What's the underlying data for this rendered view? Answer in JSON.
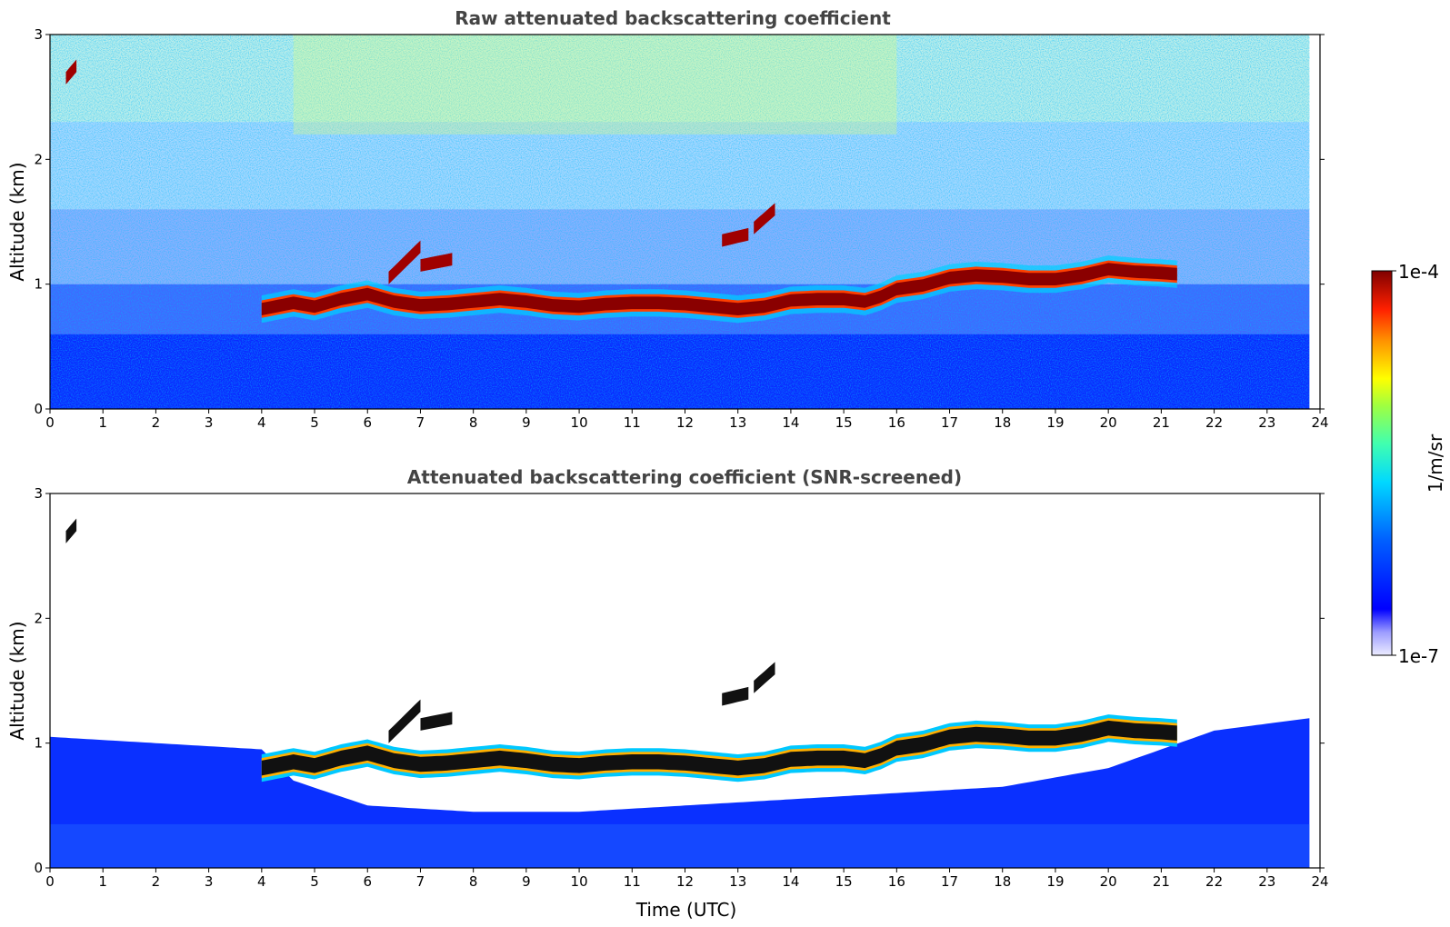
{
  "chart_data": [
    {
      "type": "heatmap",
      "title": "Raw attenuated backscattering coefficient",
      "xlabel": "",
      "ylabel": "Altitude (km)",
      "xlim": [
        0,
        24
      ],
      "ylim": [
        0,
        3
      ],
      "xticks": [
        0,
        1,
        2,
        3,
        4,
        5,
        6,
        7,
        8,
        9,
        10,
        11,
        12,
        13,
        14,
        15,
        16,
        17,
        18,
        19,
        20,
        21,
        22,
        23,
        24
      ],
      "yticks": [
        0,
        1,
        2,
        3
      ],
      "data_end_hour": 23.8,
      "background_noise": "high, increasing with altitude",
      "cloud_layer": {
        "time": [
          4.0,
          4.6,
          5.0,
          5.5,
          6.0,
          6.5,
          7.0,
          7.5,
          8.0,
          8.5,
          9.0,
          9.5,
          10.0,
          10.5,
          11.0,
          11.5,
          12.0,
          12.5,
          13.0,
          13.5,
          14.0,
          14.5,
          15.0,
          15.4,
          15.7,
          16.0,
          16.5,
          17.0,
          17.5,
          18.0,
          18.5,
          19.0,
          19.5,
          20.0,
          20.5,
          21.0,
          21.3
        ],
        "altitude_km": [
          0.8,
          0.85,
          0.82,
          0.88,
          0.92,
          0.86,
          0.83,
          0.84,
          0.86,
          0.88,
          0.86,
          0.83,
          0.82,
          0.84,
          0.85,
          0.85,
          0.84,
          0.82,
          0.8,
          0.82,
          0.87,
          0.88,
          0.88,
          0.86,
          0.9,
          0.96,
          0.99,
          1.05,
          1.07,
          1.06,
          1.04,
          1.04,
          1.07,
          1.12,
          1.1,
          1.09,
          1.08
        ]
      },
      "elevated_cloud_fragments": [
        {
          "time": [
            6.4,
            7.0
          ],
          "altitude_km": [
            1.05,
            1.3
          ]
        },
        {
          "time": [
            7.0,
            7.6
          ],
          "altitude_km": [
            1.15,
            1.2
          ]
        },
        {
          "time": [
            12.7,
            13.2
          ],
          "altitude_km": [
            1.35,
            1.4
          ]
        },
        {
          "time": [
            13.3,
            13.7
          ],
          "altitude_km": [
            1.45,
            1.6
          ]
        },
        {
          "time": [
            0.3,
            0.5
          ],
          "altitude_km": [
            2.65,
            2.75
          ]
        }
      ]
    },
    {
      "type": "heatmap",
      "title": "Attenuated backscattering coefficient (SNR-screened)",
      "xlabel": "Time (UTC)",
      "ylabel": "Altitude (km)",
      "xlim": [
        0,
        24
      ],
      "ylim": [
        0,
        3
      ],
      "xticks": [
        0,
        1,
        2,
        3,
        4,
        5,
        6,
        7,
        8,
        9,
        10,
        11,
        12,
        13,
        14,
        15,
        16,
        17,
        18,
        19,
        20,
        21,
        22,
        23,
        24
      ],
      "yticks": [
        0,
        1,
        2,
        3
      ],
      "data_end_hour": 23.8,
      "background_noise": "removed above boundary layer",
      "boundary_layer_top_km": {
        "time": [
          0,
          2,
          4,
          4.6,
          6,
          8,
          10,
          12,
          14,
          16,
          18,
          20,
          22,
          23.8
        ],
        "altitude_km": [
          1.05,
          1.0,
          0.95,
          0.7,
          0.5,
          0.45,
          0.45,
          0.5,
          0.55,
          0.6,
          0.65,
          0.8,
          1.1,
          1.2
        ]
      },
      "cloud_layer_same_as_raw": true
    }
  ],
  "colorbar": {
    "label": "1/m/sr",
    "max_label": "1e-4",
    "min_label": "1e-7",
    "scale": "log",
    "colormap": "jet",
    "colors": [
      "#e6e6ff",
      "#b8b8ff",
      "#8c8cff",
      "#0000ff",
      "#0040ff",
      "#0080ff",
      "#00c0ff",
      "#00ffff",
      "#40ff80",
      "#80ff40",
      "#ffff00",
      "#ffc000",
      "#ff8000",
      "#ff2000",
      "#c00000",
      "#800000"
    ]
  }
}
